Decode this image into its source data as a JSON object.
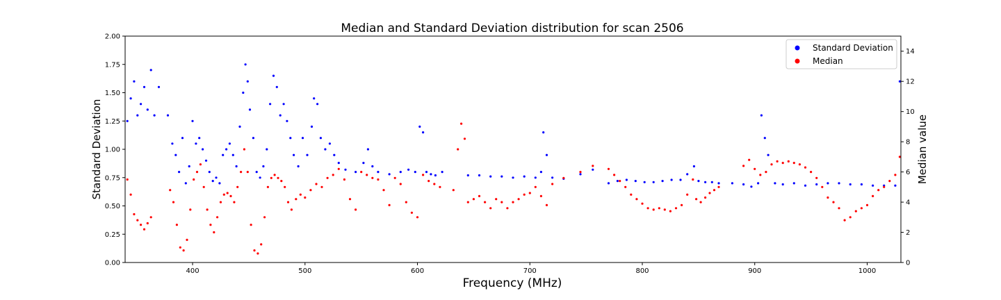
{
  "chart_data": {
    "type": "scatter",
    "title": "Median and Standard Deviation distribution for scan 2506",
    "xlabel": "Frequency (MHz)",
    "ylabel": "Standard Deviation",
    "y2label": "Median value",
    "xlim": [
      340,
      1030
    ],
    "ylim": [
      0,
      2
    ],
    "y2lim": [
      0,
      15
    ],
    "xticks": [
      400,
      500,
      600,
      700,
      800,
      900,
      1000
    ],
    "yticks": [
      0.0,
      0.25,
      0.5,
      0.75,
      1.0,
      1.25,
      1.5,
      1.75,
      2.0
    ],
    "ytick_labels": [
      "0.00",
      "0.25",
      "0.50",
      "0.75",
      "1.00",
      "1.25",
      "1.50",
      "1.75",
      "2.00"
    ],
    "y2ticks": [
      0,
      2,
      4,
      6,
      8,
      10,
      12,
      14
    ],
    "legend_position": "top-right",
    "colors": {
      "std": "#0000ff",
      "median": "#ff0000"
    },
    "series": [
      {
        "name": "Standard Deviation",
        "axis": "left",
        "color": "#0000ff",
        "points": [
          [
            342,
            1.25
          ],
          [
            345,
            1.45
          ],
          [
            348,
            1.6
          ],
          [
            351,
            1.3
          ],
          [
            354,
            1.4
          ],
          [
            357,
            1.55
          ],
          [
            360,
            1.35
          ],
          [
            363,
            1.7
          ],
          [
            366,
            1.3
          ],
          [
            370,
            1.55
          ],
          [
            378,
            1.3
          ],
          [
            382,
            1.05
          ],
          [
            385,
            0.95
          ],
          [
            388,
            0.8
          ],
          [
            391,
            1.1
          ],
          [
            394,
            0.7
          ],
          [
            397,
            0.85
          ],
          [
            400,
            1.25
          ],
          [
            403,
            1.05
          ],
          [
            406,
            1.1
          ],
          [
            409,
            1.0
          ],
          [
            412,
            0.9
          ],
          [
            415,
            0.8
          ],
          [
            418,
            0.72
          ],
          [
            421,
            0.75
          ],
          [
            424,
            0.7
          ],
          [
            427,
            0.95
          ],
          [
            430,
            1.0
          ],
          [
            433,
            1.05
          ],
          [
            436,
            0.95
          ],
          [
            439,
            0.85
          ],
          [
            442,
            1.2
          ],
          [
            445,
            1.5
          ],
          [
            447,
            1.75
          ],
          [
            449,
            1.6
          ],
          [
            451,
            1.35
          ],
          [
            454,
            1.1
          ],
          [
            457,
            0.8
          ],
          [
            460,
            0.75
          ],
          [
            463,
            0.85
          ],
          [
            466,
            1.0
          ],
          [
            469,
            1.4
          ],
          [
            472,
            1.65
          ],
          [
            475,
            1.55
          ],
          [
            478,
            1.3
          ],
          [
            481,
            1.4
          ],
          [
            484,
            1.25
          ],
          [
            487,
            1.1
          ],
          [
            490,
            0.95
          ],
          [
            494,
            0.85
          ],
          [
            498,
            1.1
          ],
          [
            502,
            0.95
          ],
          [
            506,
            1.2
          ],
          [
            508,
            1.45
          ],
          [
            511,
            1.4
          ],
          [
            514,
            1.1
          ],
          [
            518,
            1.0
          ],
          [
            522,
            1.05
          ],
          [
            526,
            0.95
          ],
          [
            530,
            0.88
          ],
          [
            536,
            0.82
          ],
          [
            545,
            0.8
          ],
          [
            552,
            0.88
          ],
          [
            556,
            1.0
          ],
          [
            560,
            0.85
          ],
          [
            565,
            0.8
          ],
          [
            575,
            0.78
          ],
          [
            585,
            0.8
          ],
          [
            592,
            0.82
          ],
          [
            598,
            0.8
          ],
          [
            602,
            1.2
          ],
          [
            605,
            1.15
          ],
          [
            608,
            0.8
          ],
          [
            612,
            0.78
          ],
          [
            616,
            0.77
          ],
          [
            622,
            0.8
          ],
          [
            645,
            0.77
          ],
          [
            655,
            0.77
          ],
          [
            665,
            0.76
          ],
          [
            675,
            0.76
          ],
          [
            685,
            0.75
          ],
          [
            695,
            0.76
          ],
          [
            705,
            0.75
          ],
          [
            710,
            0.8
          ],
          [
            712,
            1.15
          ],
          [
            715,
            0.95
          ],
          [
            720,
            0.75
          ],
          [
            730,
            0.74
          ],
          [
            745,
            0.78
          ],
          [
            756,
            0.82
          ],
          [
            770,
            0.7
          ],
          [
            778,
            0.72
          ],
          [
            786,
            0.73
          ],
          [
            794,
            0.72
          ],
          [
            802,
            0.71
          ],
          [
            810,
            0.71
          ],
          [
            818,
            0.72
          ],
          [
            826,
            0.73
          ],
          [
            834,
            0.73
          ],
          [
            840,
            0.78
          ],
          [
            846,
            0.85
          ],
          [
            850,
            0.72
          ],
          [
            856,
            0.71
          ],
          [
            862,
            0.71
          ],
          [
            868,
            0.7
          ],
          [
            880,
            0.7
          ],
          [
            890,
            0.69
          ],
          [
            897,
            0.67
          ],
          [
            903,
            0.7
          ],
          [
            906,
            1.3
          ],
          [
            909,
            1.1
          ],
          [
            912,
            0.95
          ],
          [
            918,
            0.7
          ],
          [
            925,
            0.69
          ],
          [
            935,
            0.7
          ],
          [
            945,
            0.68
          ],
          [
            955,
            0.69
          ],
          [
            965,
            0.7
          ],
          [
            975,
            0.7
          ],
          [
            985,
            0.69
          ],
          [
            995,
            0.69
          ],
          [
            1005,
            0.68
          ],
          [
            1015,
            0.68
          ],
          [
            1025,
            0.68
          ],
          [
            1029,
            1.6
          ]
        ]
      },
      {
        "name": "Median",
        "axis": "right",
        "color": "#ff0000",
        "points": [
          [
            342,
            5.5
          ],
          [
            345,
            4.5
          ],
          [
            348,
            3.2
          ],
          [
            351,
            2.8
          ],
          [
            354,
            2.5
          ],
          [
            357,
            2.2
          ],
          [
            360,
            2.6
          ],
          [
            363,
            3.0
          ],
          [
            380,
            4.8
          ],
          [
            383,
            4.0
          ],
          [
            386,
            2.5
          ],
          [
            389,
            1.0
          ],
          [
            392,
            0.8
          ],
          [
            395,
            1.5
          ],
          [
            398,
            3.5
          ],
          [
            401,
            5.5
          ],
          [
            404,
            6.0
          ],
          [
            407,
            6.5
          ],
          [
            410,
            5.0
          ],
          [
            413,
            3.5
          ],
          [
            416,
            2.5
          ],
          [
            419,
            2.0
          ],
          [
            422,
            3.0
          ],
          [
            425,
            4.0
          ],
          [
            428,
            4.5
          ],
          [
            431,
            4.6
          ],
          [
            434,
            4.4
          ],
          [
            437,
            4.0
          ],
          [
            440,
            5.0
          ],
          [
            443,
            6.0
          ],
          [
            446,
            7.5
          ],
          [
            449,
            6.0
          ],
          [
            452,
            2.5
          ],
          [
            455,
            0.8
          ],
          [
            458,
            0.6
          ],
          [
            461,
            1.2
          ],
          [
            464,
            3.0
          ],
          [
            467,
            5.0
          ],
          [
            470,
            5.6
          ],
          [
            473,
            5.8
          ],
          [
            476,
            5.6
          ],
          [
            479,
            5.4
          ],
          [
            482,
            5.0
          ],
          [
            485,
            4.0
          ],
          [
            488,
            3.5
          ],
          [
            492,
            4.2
          ],
          [
            496,
            4.5
          ],
          [
            500,
            4.3
          ],
          [
            505,
            4.8
          ],
          [
            510,
            5.2
          ],
          [
            515,
            5.0
          ],
          [
            520,
            5.6
          ],
          [
            525,
            5.8
          ],
          [
            530,
            6.2
          ],
          [
            535,
            5.5
          ],
          [
            540,
            4.2
          ],
          [
            545,
            3.5
          ],
          [
            550,
            6.0
          ],
          [
            555,
            5.8
          ],
          [
            560,
            5.6
          ],
          [
            565,
            5.5
          ],
          [
            570,
            4.8
          ],
          [
            575,
            3.8
          ],
          [
            580,
            5.6
          ],
          [
            585,
            5.2
          ],
          [
            590,
            4.0
          ],
          [
            595,
            3.3
          ],
          [
            600,
            3.0
          ],
          [
            605,
            5.8
          ],
          [
            610,
            5.4
          ],
          [
            615,
            5.2
          ],
          [
            620,
            5.0
          ],
          [
            632,
            4.8
          ],
          [
            636,
            7.5
          ],
          [
            639,
            9.2
          ],
          [
            642,
            8.2
          ],
          [
            645,
            4.0
          ],
          [
            650,
            4.2
          ],
          [
            655,
            4.4
          ],
          [
            660,
            4.0
          ],
          [
            665,
            3.6
          ],
          [
            670,
            4.2
          ],
          [
            675,
            4.0
          ],
          [
            680,
            3.6
          ],
          [
            685,
            4.0
          ],
          [
            690,
            4.2
          ],
          [
            695,
            4.5
          ],
          [
            700,
            4.6
          ],
          [
            705,
            5.0
          ],
          [
            710,
            4.4
          ],
          [
            715,
            3.8
          ],
          [
            720,
            5.2
          ],
          [
            730,
            5.6
          ],
          [
            745,
            6.0
          ],
          [
            756,
            6.4
          ],
          [
            770,
            6.2
          ],
          [
            775,
            5.8
          ],
          [
            780,
            5.4
          ],
          [
            785,
            5.0
          ],
          [
            790,
            4.5
          ],
          [
            795,
            4.2
          ],
          [
            800,
            3.9
          ],
          [
            805,
            3.6
          ],
          [
            810,
            3.5
          ],
          [
            815,
            3.6
          ],
          [
            820,
            3.5
          ],
          [
            825,
            3.4
          ],
          [
            830,
            3.6
          ],
          [
            835,
            3.8
          ],
          [
            840,
            4.5
          ],
          [
            845,
            5.5
          ],
          [
            848,
            4.2
          ],
          [
            852,
            4.0
          ],
          [
            856,
            4.3
          ],
          [
            860,
            4.6
          ],
          [
            864,
            4.8
          ],
          [
            868,
            5.0
          ],
          [
            890,
            6.4
          ],
          [
            895,
            6.8
          ],
          [
            900,
            6.2
          ],
          [
            905,
            5.8
          ],
          [
            910,
            6.0
          ],
          [
            915,
            6.5
          ],
          [
            920,
            6.7
          ],
          [
            925,
            6.6
          ],
          [
            930,
            6.7
          ],
          [
            935,
            6.6
          ],
          [
            940,
            6.5
          ],
          [
            945,
            6.3
          ],
          [
            950,
            6.0
          ],
          [
            955,
            5.6
          ],
          [
            960,
            5.0
          ],
          [
            965,
            4.3
          ],
          [
            970,
            4.0
          ],
          [
            975,
            3.6
          ],
          [
            980,
            2.8
          ],
          [
            985,
            3.0
          ],
          [
            990,
            3.4
          ],
          [
            995,
            3.6
          ],
          [
            1000,
            3.8
          ],
          [
            1005,
            4.4
          ],
          [
            1010,
            4.8
          ],
          [
            1015,
            5.0
          ],
          [
            1020,
            5.4
          ],
          [
            1025,
            5.8
          ],
          [
            1029,
            7.0
          ]
        ]
      }
    ]
  }
}
